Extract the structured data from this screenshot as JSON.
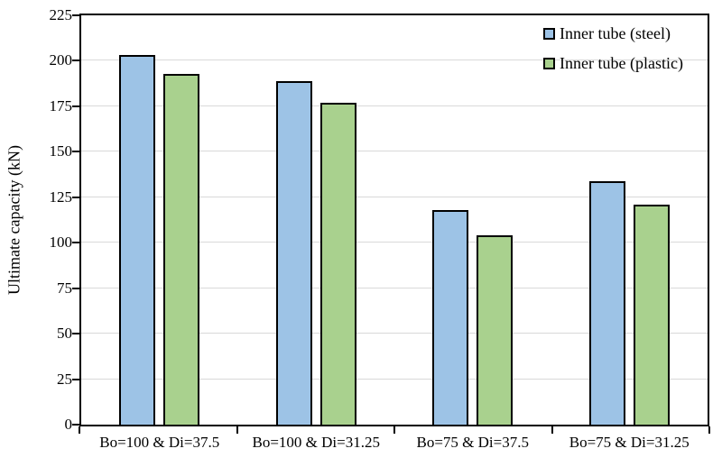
{
  "chart_data": {
    "type": "bar",
    "title": "",
    "xlabel": "",
    "ylabel": "Ultimate capacity (kN)",
    "ylim": [
      0,
      225
    ],
    "ytick_step": 25,
    "yticks": [
      0,
      25,
      50,
      75,
      100,
      125,
      150,
      175,
      200,
      225
    ],
    "categories": [
      "Bo=100 & Di=37.5",
      "Bo=100 & Di=31.25",
      "Bo=75 & Di=37.5",
      "Bo=75 & Di=31.25"
    ],
    "series": [
      {
        "name": "Inner tube (steel)",
        "color": "#9DC3E6",
        "values": [
          203,
          189,
          118,
          134
        ]
      },
      {
        "name": "Inner tube (plastic)",
        "color": "#A9D18E",
        "values": [
          193,
          177,
          104,
          121
        ]
      }
    ],
    "grid": true,
    "legend_position": "top-right",
    "colors": {
      "bar_border": "#000000",
      "gridline": "#D9D9D9",
      "axis": "#000000",
      "text": "#000000",
      "background": "#FFFFFF"
    }
  }
}
